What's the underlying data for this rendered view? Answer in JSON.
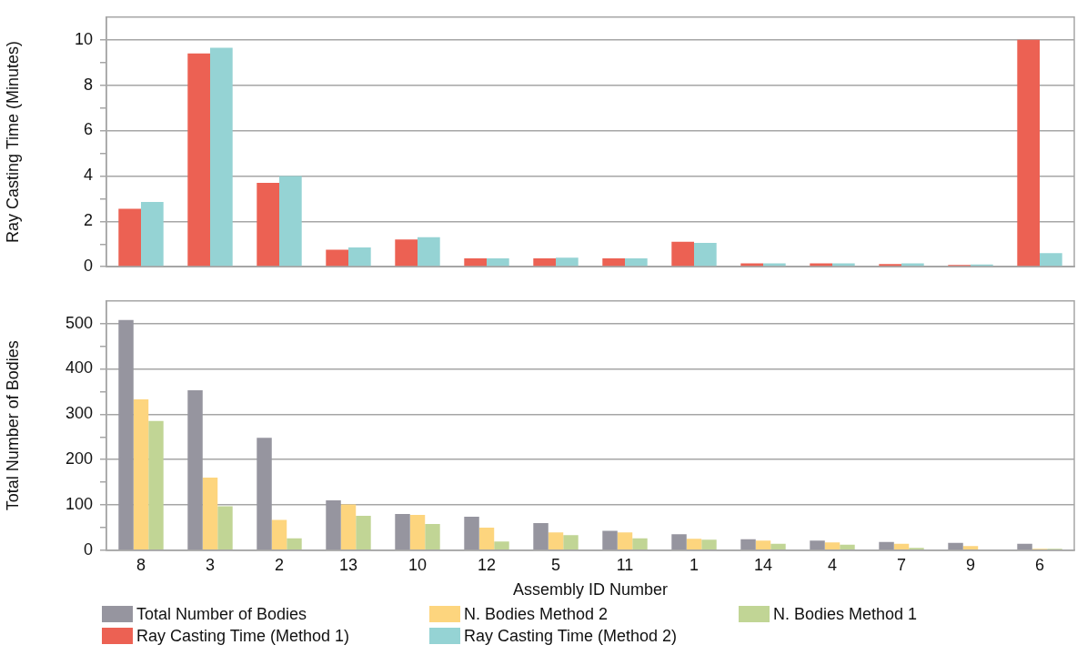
{
  "chart_data": [
    {
      "type": "bar",
      "ylabel": "Ray Casting Time (Minutes)",
      "categories": [
        "8",
        "3",
        "2",
        "13",
        "10",
        "12",
        "5",
        "11",
        "1",
        "14",
        "4",
        "7",
        "9",
        "6"
      ],
      "series": [
        {
          "name": "Ray Casting Time (Method 1)",
          "color": "#ec6153",
          "values": [
            2.55,
            9.4,
            3.7,
            0.75,
            1.2,
            0.37,
            0.37,
            0.37,
            1.1,
            0.15,
            0.15,
            0.12,
            0.08,
            10.0
          ]
        },
        {
          "name": "Ray Casting Time (Method 2)",
          "color": "#95d3d4",
          "values": [
            2.85,
            9.65,
            4.0,
            0.85,
            1.3,
            0.37,
            0.4,
            0.37,
            1.05,
            0.15,
            0.15,
            0.15,
            0.1,
            0.6
          ]
        }
      ],
      "ylim": [
        0,
        11
      ],
      "yticks": [
        0,
        {
          "value": 1,
          "label": null
        },
        2,
        {
          "value": 3,
          "label": null
        },
        4,
        {
          "value": 5,
          "label": null
        },
        6,
        {
          "value": 7,
          "label": null
        },
        8,
        {
          "value": 9,
          "label": null
        },
        10
      ],
      "grid": "y",
      "legend": "bottom",
      "tick_labels": "y"
    },
    {
      "type": "bar",
      "xlabel": "Assembly ID Number",
      "ylabel": "Total Number of Bodies",
      "categories": [
        "8",
        "3",
        "2",
        "13",
        "10",
        "12",
        "5",
        "11",
        "1",
        "14",
        "4",
        "7",
        "9",
        "6"
      ],
      "series": [
        {
          "name": "Total Number of Bodies",
          "color": "#96959f",
          "values": [
            508,
            353,
            248,
            110,
            80,
            74,
            60,
            43,
            35,
            24,
            21,
            18,
            16,
            14
          ]
        },
        {
          "name": "N. Bodies Method 2",
          "color": "#fdd57e",
          "values": [
            333,
            160,
            67,
            101,
            78,
            50,
            39,
            39,
            25,
            21,
            17,
            14,
            9,
            3
          ]
        },
        {
          "name": "N. Bodies Method 1",
          "color": "#c1d595",
          "values": [
            285,
            97,
            26,
            76,
            58,
            19,
            33,
            26,
            23,
            14,
            12,
            5,
            1,
            3
          ]
        }
      ],
      "ylim": [
        0,
        550
      ],
      "yticks": [
        0,
        {
          "value": 50,
          "label": null
        },
        100,
        {
          "value": 150,
          "label": null
        },
        200,
        {
          "value": 250,
          "label": null
        },
        300,
        {
          "value": 350,
          "label": null
        },
        400,
        {
          "value": 450,
          "label": null
        },
        500
      ],
      "grid": "y",
      "legend": "bottom"
    }
  ]
}
